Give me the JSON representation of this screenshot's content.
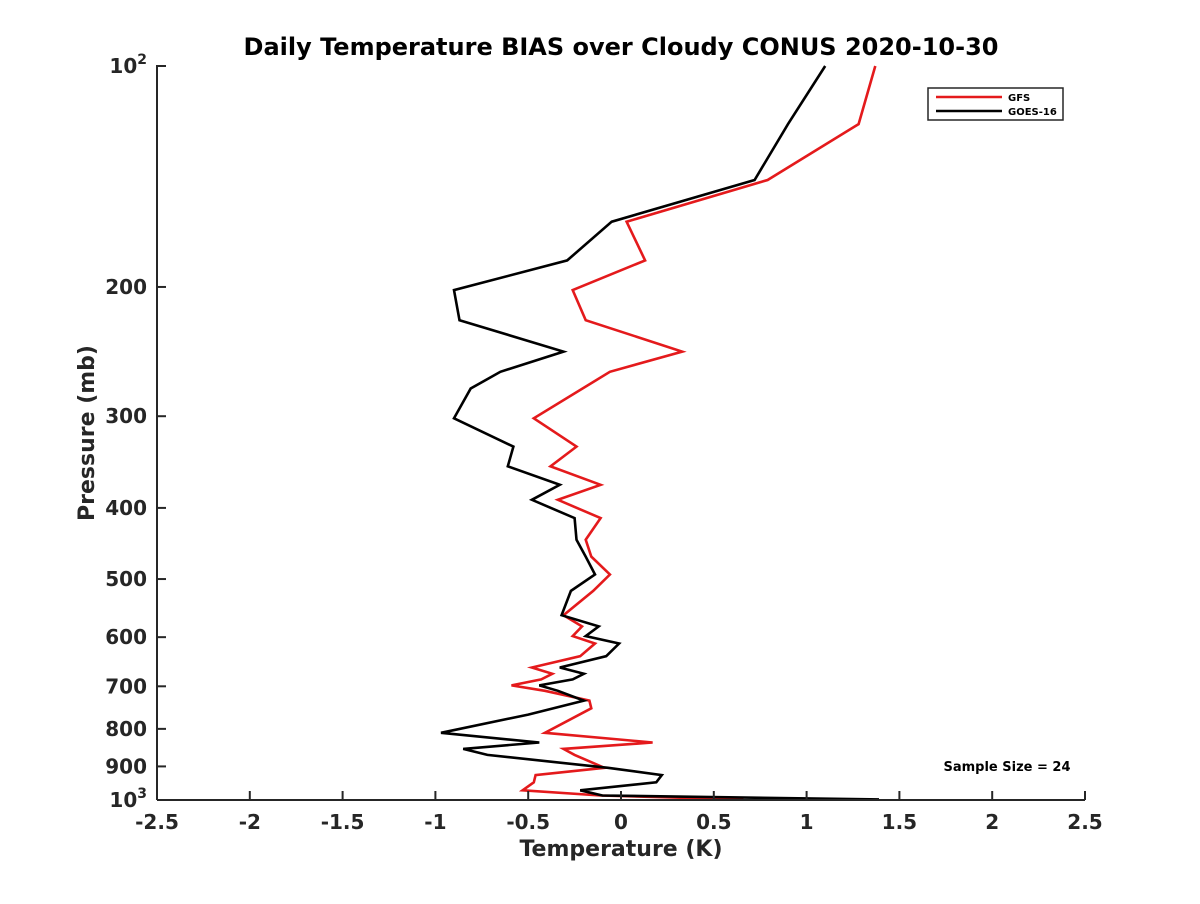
{
  "chart_data": {
    "type": "line",
    "title": "Daily Temperature BIAS over Cloudy CONUS 2020-10-30",
    "xlabel": "Temperature (K)",
    "ylabel": "Pressure (mb)",
    "xlim": [
      -2.5,
      2.5
    ],
    "ylim": [
      100,
      1000
    ],
    "y_scale": "log",
    "y_reversed": true,
    "x_ticks": [
      "-2.5",
      "-2",
      "-1.5",
      "-1",
      "-0.5",
      "0",
      "0.5",
      "1",
      "1.5",
      "2",
      "2.5"
    ],
    "x_tick_values": [
      -2.5,
      -2,
      -1.5,
      -1,
      -0.5,
      0,
      0.5,
      1,
      1.5,
      2,
      2.5
    ],
    "y_ticks": [
      {
        "value": 100,
        "base": "10",
        "exp": "2"
      },
      {
        "value": 200,
        "label": "200"
      },
      {
        "value": 300,
        "label": "300"
      },
      {
        "value": 400,
        "label": "400"
      },
      {
        "value": 500,
        "label": "500"
      },
      {
        "value": 600,
        "label": "600"
      },
      {
        "value": 700,
        "label": "700"
      },
      {
        "value": 800,
        "label": "800"
      },
      {
        "value": 900,
        "label": "900"
      },
      {
        "value": 1000,
        "base": "10",
        "exp": "3"
      }
    ],
    "grid": false,
    "legend_position": "top-right",
    "annotation": "Sample Size = 24",
    "series": [
      {
        "name": "GFS",
        "color": "#e41a1c",
        "points": [
          [
            1.37,
            100
          ],
          [
            1.28,
            120
          ],
          [
            0.79,
            143
          ],
          [
            0.03,
            163
          ],
          [
            0.13,
            184
          ],
          [
            -0.26,
            202
          ],
          [
            -0.19,
            222
          ],
          [
            0.33,
            245
          ],
          [
            -0.06,
            261
          ],
          [
            -0.47,
            302
          ],
          [
            -0.24,
            330
          ],
          [
            -0.38,
            351
          ],
          [
            -0.11,
            372
          ],
          [
            -0.34,
            390
          ],
          [
            -0.11,
            413
          ],
          [
            -0.19,
            442
          ],
          [
            -0.16,
            466
          ],
          [
            -0.06,
            493
          ],
          [
            -0.15,
            519
          ],
          [
            -0.31,
            560
          ],
          [
            -0.21,
            580
          ],
          [
            -0.26,
            598
          ],
          [
            -0.14,
            612
          ],
          [
            -0.22,
            637
          ],
          [
            -0.48,
            660
          ],
          [
            -0.37,
            673
          ],
          [
            -0.43,
            685
          ],
          [
            -0.59,
            698
          ],
          [
            -0.41,
            710
          ],
          [
            -0.17,
            732
          ],
          [
            -0.16,
            750
          ],
          [
            -0.41,
            810
          ],
          [
            0.17,
            835
          ],
          [
            -0.31,
            852
          ],
          [
            -0.25,
            868
          ],
          [
            -0.09,
            904
          ],
          [
            -0.46,
            925
          ],
          [
            -0.47,
            946
          ],
          [
            -0.53,
            970
          ],
          [
            -0.11,
            986
          ],
          [
            0.66,
            998
          ]
        ]
      },
      {
        "name": "GOES-16",
        "color": "#000000",
        "points": [
          [
            1.1,
            100
          ],
          [
            0.9,
            120
          ],
          [
            0.72,
            143
          ],
          [
            -0.05,
            163
          ],
          [
            -0.29,
            184
          ],
          [
            -0.9,
            202
          ],
          [
            -0.87,
            222
          ],
          [
            -0.31,
            245
          ],
          [
            -0.65,
            261
          ],
          [
            -0.81,
            275
          ],
          [
            -0.9,
            302
          ],
          [
            -0.58,
            330
          ],
          [
            -0.61,
            351
          ],
          [
            -0.33,
            372
          ],
          [
            -0.48,
            390
          ],
          [
            -0.25,
            413
          ],
          [
            -0.24,
            442
          ],
          [
            -0.19,
            466
          ],
          [
            -0.14,
            493
          ],
          [
            -0.27,
            519
          ],
          [
            -0.32,
            560
          ],
          [
            -0.12,
            580
          ],
          [
            -0.19,
            598
          ],
          [
            -0.01,
            612
          ],
          [
            -0.08,
            637
          ],
          [
            -0.33,
            660
          ],
          [
            -0.2,
            673
          ],
          [
            -0.26,
            685
          ],
          [
            -0.44,
            698
          ],
          [
            -0.34,
            710
          ],
          [
            -0.2,
            732
          ],
          [
            -0.5,
            765
          ],
          [
            -0.97,
            810
          ],
          [
            -0.44,
            835
          ],
          [
            -0.85,
            852
          ],
          [
            -0.72,
            868
          ],
          [
            -0.07,
            904
          ],
          [
            0.22,
            925
          ],
          [
            0.19,
            946
          ],
          [
            -0.22,
            970
          ],
          [
            -0.1,
            986
          ],
          [
            1.39,
            998
          ]
        ]
      }
    ]
  }
}
